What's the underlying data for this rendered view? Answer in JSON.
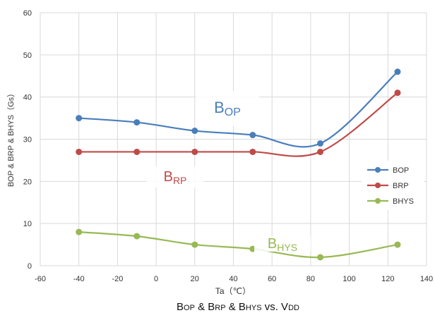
{
  "chart_data": {
    "type": "line",
    "x": [
      -40,
      -10,
      20,
      50,
      85,
      125
    ],
    "series": [
      {
        "name": "BOP",
        "values": [
          35,
          34,
          32,
          31,
          29,
          46
        ],
        "color": "#4a7ebb",
        "label": {
          "main": "B",
          "sub": "OP"
        }
      },
      {
        "name": "BRP",
        "values": [
          27,
          27,
          27,
          27,
          27,
          41
        ],
        "color": "#be4b48",
        "label": {
          "main": "B",
          "sub": "RP"
        }
      },
      {
        "name": "BHYS",
        "values": [
          8,
          7,
          5,
          4,
          2,
          5
        ],
        "color": "#98b954",
        "label": {
          "main": "B",
          "sub": "HYS"
        }
      }
    ],
    "xlim": [
      -60,
      140
    ],
    "ylim": [
      0,
      60
    ],
    "xticks": [
      "-60",
      "-40",
      "-20",
      "0",
      "20",
      "40",
      "60",
      "80",
      "100",
      "120",
      "140"
    ],
    "yticks": [
      "0",
      "10",
      "20",
      "30",
      "40",
      "50",
      "60"
    ],
    "xlabel": "Ta（℃）",
    "ylabel": "BOP & BRP & BHYS（Gs）",
    "grid": "x-and-y",
    "smooth": true,
    "legend_position": "right"
  },
  "caption": {
    "parts": [
      {
        "text": "B",
        "small": false
      },
      {
        "text": "OP",
        "small": true
      },
      {
        "text": " & B",
        "small": false
      },
      {
        "text": "RP",
        "small": true
      },
      {
        "text": " & B",
        "small": false
      },
      {
        "text": "HYS",
        "small": true
      },
      {
        "text": " vs. V",
        "small": false
      },
      {
        "text": "DD",
        "small": true
      }
    ]
  }
}
